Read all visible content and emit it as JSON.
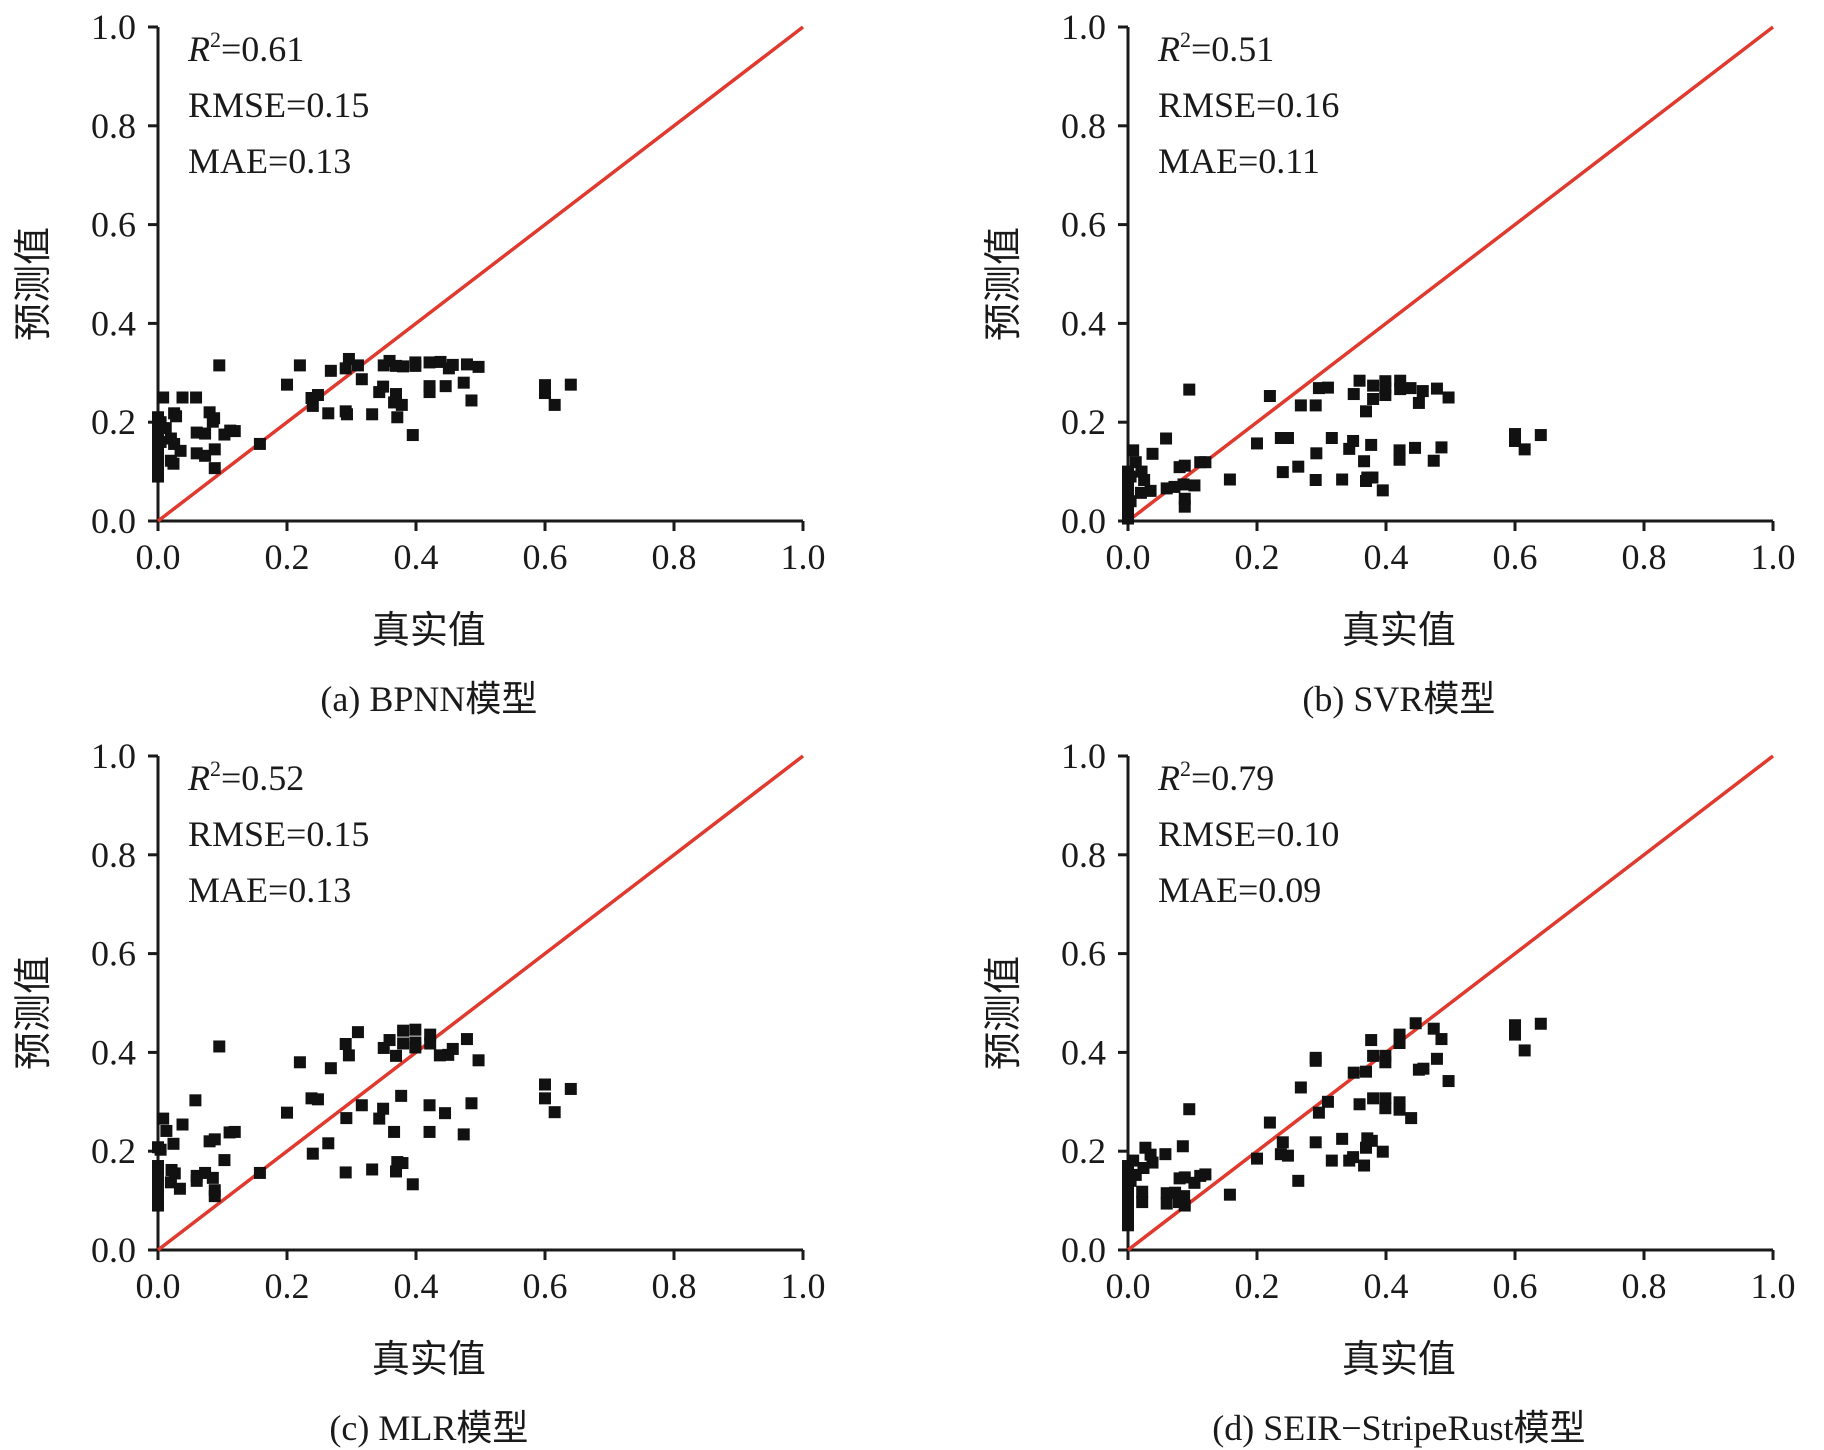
{
  "figure": {
    "colors": {
      "identity_line": "#e03a2f",
      "points": "#111111",
      "axes": "#1a1a1a"
    }
  },
  "chart_data": [
    {
      "type": "scatter",
      "id": "a",
      "caption": "(a) BPNN模型",
      "xlabel": "真实值",
      "ylabel": "预测值",
      "xlim": [
        0,
        1
      ],
      "ylim": [
        0,
        1
      ],
      "xticks": [
        "0.0",
        "0.2",
        "0.4",
        "0.6",
        "0.8",
        "1.0"
      ],
      "yticks": [
        "0.0",
        "0.2",
        "0.4",
        "0.6",
        "0.8",
        "1.0"
      ],
      "grid": false,
      "reference_line": "y = x",
      "stats": {
        "r2_label": "R",
        "r2_sup": "2",
        "r2_value": "=0.61",
        "rmse": "RMSE=0.15",
        "mae": "MAE=0.13"
      },
      "points": [
        [
          0.6,
          0.275
        ],
        [
          0.6,
          0.259
        ],
        [
          0.615,
          0.235
        ],
        [
          0.64,
          0.276
        ],
        [
          0.095,
          0.315
        ],
        [
          0.008,
          0.25
        ],
        [
          0.038,
          0.25
        ],
        [
          0.059,
          0.25
        ],
        [
          0.025,
          0.218
        ],
        [
          0.028,
          0.212
        ],
        [
          0.08,
          0.22
        ],
        [
          0.087,
          0.208
        ],
        [
          0.085,
          0.201
        ],
        [
          0.06,
          0.179
        ],
        [
          0.073,
          0.177
        ],
        [
          0.103,
          0.175
        ],
        [
          0.112,
          0.183
        ],
        [
          0.119,
          0.182
        ],
        [
          0.012,
          0.188
        ],
        [
          0.02,
          0.167
        ],
        [
          0.025,
          0.156
        ],
        [
          0.035,
          0.142
        ],
        [
          0.06,
          0.137
        ],
        [
          0.073,
          0.132
        ],
        [
          0.088,
          0.145
        ],
        [
          0.02,
          0.122
        ],
        [
          0.024,
          0.116
        ],
        [
          0.088,
          0.107
        ],
        [
          0.0,
          0.09
        ],
        [
          0.0,
          0.11
        ],
        [
          0.0,
          0.13
        ],
        [
          0.0,
          0.15
        ],
        [
          0.0,
          0.17
        ],
        [
          0.0,
          0.19
        ],
        [
          0.0,
          0.21
        ],
        [
          0.004,
          0.2
        ],
        [
          0.004,
          0.16
        ],
        [
          0.158,
          0.156
        ],
        [
          0.2,
          0.276
        ],
        [
          0.22,
          0.315
        ],
        [
          0.238,
          0.249
        ],
        [
          0.248,
          0.255
        ],
        [
          0.24,
          0.233
        ],
        [
          0.264,
          0.218
        ],
        [
          0.268,
          0.304
        ],
        [
          0.291,
          0.309
        ],
        [
          0.296,
          0.328
        ],
        [
          0.31,
          0.315
        ],
        [
          0.316,
          0.287
        ],
        [
          0.291,
          0.222
        ],
        [
          0.293,
          0.216
        ],
        [
          0.332,
          0.216
        ],
        [
          0.35,
          0.315
        ],
        [
          0.359,
          0.324
        ],
        [
          0.369,
          0.314
        ],
        [
          0.38,
          0.313
        ],
        [
          0.399,
          0.321
        ],
        [
          0.399,
          0.314
        ],
        [
          0.343,
          0.261
        ],
        [
          0.349,
          0.272
        ],
        [
          0.369,
          0.257
        ],
        [
          0.366,
          0.24
        ],
        [
          0.378,
          0.235
        ],
        [
          0.371,
          0.21
        ],
        [
          0.395,
          0.174
        ],
        [
          0.421,
          0.321
        ],
        [
          0.438,
          0.322
        ],
        [
          0.451,
          0.309
        ],
        [
          0.457,
          0.316
        ],
        [
          0.479,
          0.317
        ],
        [
          0.497,
          0.312
        ],
        [
          0.421,
          0.273
        ],
        [
          0.421,
          0.261
        ],
        [
          0.446,
          0.273
        ],
        [
          0.474,
          0.28
        ],
        [
          0.486,
          0.244
        ]
      ]
    },
    {
      "type": "scatter",
      "id": "b",
      "caption": "(b) SVR模型",
      "xlabel": "真实值",
      "ylabel": "预测值",
      "xlim": [
        0,
        1
      ],
      "ylim": [
        0,
        1
      ],
      "xticks": [
        "0.0",
        "0.2",
        "0.4",
        "0.6",
        "0.8",
        "1.0"
      ],
      "yticks": [
        "0.0",
        "0.2",
        "0.4",
        "0.6",
        "0.8",
        "1.0"
      ],
      "grid": false,
      "reference_line": "y = x",
      "stats": {
        "r2_label": "R",
        "r2_sup": "2",
        "r2_value": "=0.51",
        "rmse": "RMSE=0.16",
        "mae": "MAE=0.11"
      },
      "points": [
        [
          0.6,
          0.176
        ],
        [
          0.6,
          0.162
        ],
        [
          0.615,
          0.145
        ],
        [
          0.64,
          0.174
        ],
        [
          0.095,
          0.266
        ],
        [
          0.059,
          0.167
        ],
        [
          0.008,
          0.143
        ],
        [
          0.038,
          0.136
        ],
        [
          0.012,
          0.119
        ],
        [
          0.021,
          0.1
        ],
        [
          0.025,
          0.083
        ],
        [
          0.035,
          0.061
        ],
        [
          0.02,
          0.057
        ],
        [
          0.06,
          0.066
        ],
        [
          0.072,
          0.069
        ],
        [
          0.08,
          0.109
        ],
        [
          0.088,
          0.112
        ],
        [
          0.086,
          0.074
        ],
        [
          0.103,
          0.072
        ],
        [
          0.088,
          0.045
        ],
        [
          0.088,
          0.029
        ],
        [
          0.112,
          0.119
        ],
        [
          0.12,
          0.119
        ],
        [
          0.0,
          0.005
        ],
        [
          0.0,
          0.02
        ],
        [
          0.0,
          0.035
        ],
        [
          0.0,
          0.05
        ],
        [
          0.0,
          0.065
        ],
        [
          0.0,
          0.08
        ],
        [
          0.0,
          0.1
        ],
        [
          0.004,
          0.09
        ],
        [
          0.004,
          0.04
        ],
        [
          0.158,
          0.084
        ],
        [
          0.2,
          0.157
        ],
        [
          0.22,
          0.253
        ],
        [
          0.237,
          0.168
        ],
        [
          0.248,
          0.168
        ],
        [
          0.24,
          0.099
        ],
        [
          0.264,
          0.11
        ],
        [
          0.268,
          0.234
        ],
        [
          0.291,
          0.234
        ],
        [
          0.296,
          0.269
        ],
        [
          0.31,
          0.27
        ],
        [
          0.292,
          0.137
        ],
        [
          0.316,
          0.168
        ],
        [
          0.291,
          0.083
        ],
        [
          0.332,
          0.084
        ],
        [
          0.35,
          0.257
        ],
        [
          0.359,
          0.284
        ],
        [
          0.38,
          0.274
        ],
        [
          0.38,
          0.247
        ],
        [
          0.369,
          0.222
        ],
        [
          0.399,
          0.283
        ],
        [
          0.399,
          0.269
        ],
        [
          0.399,
          0.255
        ],
        [
          0.343,
          0.146
        ],
        [
          0.349,
          0.162
        ],
        [
          0.366,
          0.121
        ],
        [
          0.377,
          0.154
        ],
        [
          0.371,
          0.088
        ],
        [
          0.379,
          0.088
        ],
        [
          0.369,
          0.081
        ],
        [
          0.395,
          0.062
        ],
        [
          0.422,
          0.284
        ],
        [
          0.422,
          0.267
        ],
        [
          0.438,
          0.269
        ],
        [
          0.457,
          0.263
        ],
        [
          0.451,
          0.239
        ],
        [
          0.479,
          0.268
        ],
        [
          0.497,
          0.25
        ],
        [
          0.421,
          0.143
        ],
        [
          0.421,
          0.124
        ],
        [
          0.445,
          0.148
        ],
        [
          0.486,
          0.149
        ],
        [
          0.474,
          0.122
        ]
      ]
    },
    {
      "type": "scatter",
      "id": "c",
      "caption": "(c) MLR模型",
      "xlabel": "真实值",
      "ylabel": "预测值",
      "xlim": [
        0,
        1
      ],
      "ylim": [
        0,
        1
      ],
      "xticks": [
        "0.0",
        "0.2",
        "0.4",
        "0.6",
        "0.8",
        "1.0"
      ],
      "yticks": [
        "0.0",
        "0.2",
        "0.4",
        "0.6",
        "0.8",
        "1.0"
      ],
      "grid": false,
      "reference_line": "y = x",
      "stats": {
        "r2_label": "R",
        "r2_sup": "2",
        "r2_value": "=0.52",
        "rmse": "RMSE=0.15",
        "mae": "MAE=0.13"
      },
      "points": [
        [
          0.6,
          0.335
        ],
        [
          0.6,
          0.307
        ],
        [
          0.615,
          0.279
        ],
        [
          0.64,
          0.326
        ],
        [
          0.095,
          0.412
        ],
        [
          0.058,
          0.303
        ],
        [
          0.008,
          0.266
        ],
        [
          0.013,
          0.241
        ],
        [
          0.038,
          0.254
        ],
        [
          0.024,
          0.215
        ],
        [
          0.004,
          0.203
        ],
        [
          0.0,
          0.208
        ],
        [
          0.08,
          0.22
        ],
        [
          0.088,
          0.224
        ],
        [
          0.111,
          0.238
        ],
        [
          0.119,
          0.239
        ],
        [
          0.103,
          0.182
        ],
        [
          0.021,
          0.162
        ],
        [
          0.026,
          0.155
        ],
        [
          0.02,
          0.137
        ],
        [
          0.034,
          0.124
        ],
        [
          0.06,
          0.15
        ],
        [
          0.06,
          0.14
        ],
        [
          0.073,
          0.156
        ],
        [
          0.085,
          0.146
        ],
        [
          0.088,
          0.121
        ],
        [
          0.088,
          0.109
        ],
        [
          0.0,
          0.09
        ],
        [
          0.0,
          0.11
        ],
        [
          0.0,
          0.13
        ],
        [
          0.0,
          0.15
        ],
        [
          0.0,
          0.17
        ],
        [
          0.158,
          0.156
        ],
        [
          0.2,
          0.278
        ],
        [
          0.238,
          0.307
        ],
        [
          0.248,
          0.305
        ],
        [
          0.22,
          0.38
        ],
        [
          0.268,
          0.368
        ],
        [
          0.24,
          0.195
        ],
        [
          0.264,
          0.216
        ],
        [
          0.291,
          0.417
        ],
        [
          0.296,
          0.394
        ],
        [
          0.31,
          0.441
        ],
        [
          0.292,
          0.267
        ],
        [
          0.316,
          0.293
        ],
        [
          0.291,
          0.157
        ],
        [
          0.332,
          0.163
        ],
        [
          0.35,
          0.409
        ],
        [
          0.359,
          0.425
        ],
        [
          0.369,
          0.393
        ],
        [
          0.38,
          0.444
        ],
        [
          0.38,
          0.418
        ],
        [
          0.399,
          0.446
        ],
        [
          0.399,
          0.42
        ],
        [
          0.399,
          0.41
        ],
        [
          0.343,
          0.266
        ],
        [
          0.349,
          0.286
        ],
        [
          0.366,
          0.239
        ],
        [
          0.377,
          0.312
        ],
        [
          0.371,
          0.178
        ],
        [
          0.379,
          0.176
        ],
        [
          0.369,
          0.159
        ],
        [
          0.395,
          0.133
        ],
        [
          0.422,
          0.436
        ],
        [
          0.422,
          0.418
        ],
        [
          0.437,
          0.394
        ],
        [
          0.45,
          0.395
        ],
        [
          0.457,
          0.407
        ],
        [
          0.479,
          0.427
        ],
        [
          0.497,
          0.384
        ],
        [
          0.421,
          0.293
        ],
        [
          0.445,
          0.277
        ],
        [
          0.486,
          0.297
        ],
        [
          0.421,
          0.239
        ],
        [
          0.474,
          0.234
        ]
      ]
    },
    {
      "type": "scatter",
      "id": "d",
      "caption": "(d) SEIR−StripeRust模型",
      "xlabel": "真实值",
      "ylabel": "预测值",
      "xlim": [
        0,
        1
      ],
      "ylim": [
        0,
        1
      ],
      "xticks": [
        "0.0",
        "0.2",
        "0.4",
        "0.6",
        "0.8",
        "1.0"
      ],
      "yticks": [
        "0.0",
        "0.2",
        "0.4",
        "0.6",
        "0.8",
        "1.0"
      ],
      "grid": false,
      "reference_line": "y = x",
      "stats": {
        "r2_label": "R",
        "r2_sup": "2",
        "r2_value": "=0.79",
        "rmse": "RMSE=0.10",
        "mae": "MAE=0.09"
      },
      "points": [
        [
          0.6,
          0.455
        ],
        [
          0.6,
          0.436
        ],
        [
          0.615,
          0.404
        ],
        [
          0.64,
          0.458
        ],
        [
          0.446,
          0.459
        ],
        [
          0.474,
          0.448
        ],
        [
          0.486,
          0.427
        ],
        [
          0.479,
          0.387
        ],
        [
          0.497,
          0.342
        ],
        [
          0.451,
          0.365
        ],
        [
          0.458,
          0.367
        ],
        [
          0.421,
          0.436
        ],
        [
          0.421,
          0.419
        ],
        [
          0.377,
          0.425
        ],
        [
          0.38,
          0.393
        ],
        [
          0.399,
          0.393
        ],
        [
          0.399,
          0.38
        ],
        [
          0.35,
          0.359
        ],
        [
          0.369,
          0.361
        ],
        [
          0.291,
          0.389
        ],
        [
          0.291,
          0.383
        ],
        [
          0.268,
          0.329
        ],
        [
          0.31,
          0.3
        ],
        [
          0.296,
          0.278
        ],
        [
          0.359,
          0.295
        ],
        [
          0.38,
          0.307
        ],
        [
          0.399,
          0.307
        ],
        [
          0.399,
          0.287
        ],
        [
          0.421,
          0.299
        ],
        [
          0.421,
          0.284
        ],
        [
          0.439,
          0.267
        ],
        [
          0.22,
          0.258
        ],
        [
          0.24,
          0.218
        ],
        [
          0.237,
          0.194
        ],
        [
          0.248,
          0.191
        ],
        [
          0.2,
          0.185
        ],
        [
          0.264,
          0.14
        ],
        [
          0.291,
          0.218
        ],
        [
          0.332,
          0.225
        ],
        [
          0.316,
          0.181
        ],
        [
          0.343,
          0.181
        ],
        [
          0.349,
          0.188
        ],
        [
          0.371,
          0.226
        ],
        [
          0.378,
          0.221
        ],
        [
          0.369,
          0.207
        ],
        [
          0.395,
          0.199
        ],
        [
          0.366,
          0.171
        ],
        [
          0.158,
          0.112
        ],
        [
          0.095,
          0.285
        ],
        [
          0.085,
          0.21
        ],
        [
          0.058,
          0.194
        ],
        [
          0.027,
          0.207
        ],
        [
          0.035,
          0.193
        ],
        [
          0.038,
          0.177
        ],
        [
          0.024,
          0.166
        ],
        [
          0.008,
          0.181
        ],
        [
          0.012,
          0.152
        ],
        [
          0.004,
          0.14
        ],
        [
          0.08,
          0.145
        ],
        [
          0.088,
          0.147
        ],
        [
          0.103,
          0.136
        ],
        [
          0.112,
          0.15
        ],
        [
          0.12,
          0.153
        ],
        [
          0.022,
          0.118
        ],
        [
          0.022,
          0.097
        ],
        [
          0.06,
          0.115
        ],
        [
          0.06,
          0.094
        ],
        [
          0.073,
          0.116
        ],
        [
          0.079,
          0.097
        ],
        [
          0.087,
          0.109
        ],
        [
          0.088,
          0.09
        ],
        [
          0.0,
          0.05
        ],
        [
          0.0,
          0.07
        ],
        [
          0.0,
          0.09
        ],
        [
          0.0,
          0.11
        ],
        [
          0.0,
          0.13
        ],
        [
          0.0,
          0.15
        ],
        [
          0.0,
          0.17
        ]
      ]
    }
  ]
}
